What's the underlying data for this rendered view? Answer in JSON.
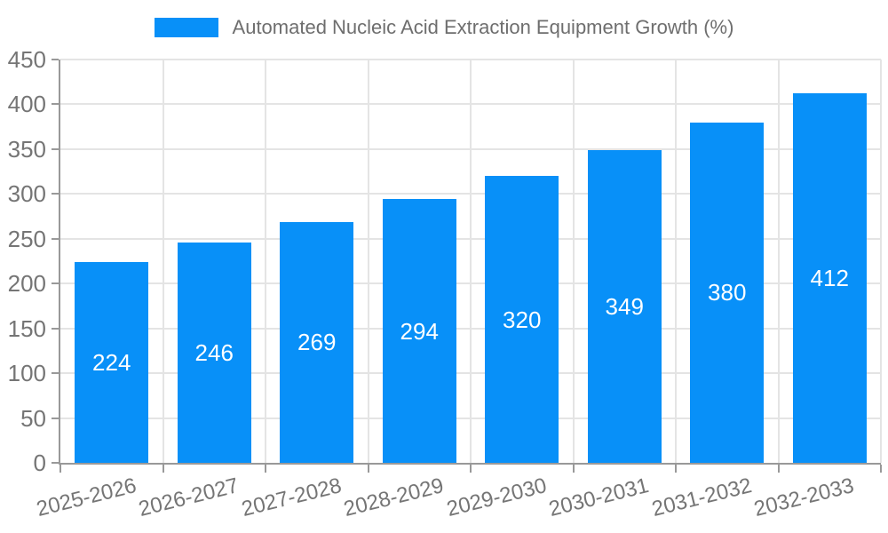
{
  "chart_data": {
    "type": "bar",
    "title": "Automated Nucleic Acid Extraction Equipment Growth (%)",
    "categories": [
      "2025-2026",
      "2026-2027",
      "2027-2028",
      "2028-2029",
      "2029-2030",
      "2030-2031",
      "2031-2032",
      "2032-2033"
    ],
    "values": [
      224,
      246,
      269,
      294,
      320,
      349,
      380,
      412
    ],
    "xlabel": "",
    "ylabel": "",
    "ylim": [
      0,
      450
    ],
    "ytick_step": 50,
    "ytick_labels": [
      "0",
      "50",
      "100",
      "150",
      "200",
      "250",
      "300",
      "350",
      "400",
      "450"
    ],
    "grid": true,
    "legend_position": "top-center",
    "x_label_rotation_deg": -14,
    "colors": {
      "bar": "#0890f8",
      "grid": "#e4e4e4",
      "axis_line": "#999999",
      "axis_label": "#757575",
      "value_label": "#ffffff",
      "legend_text": "#6e6e6e",
      "background": "#ffffff"
    }
  }
}
